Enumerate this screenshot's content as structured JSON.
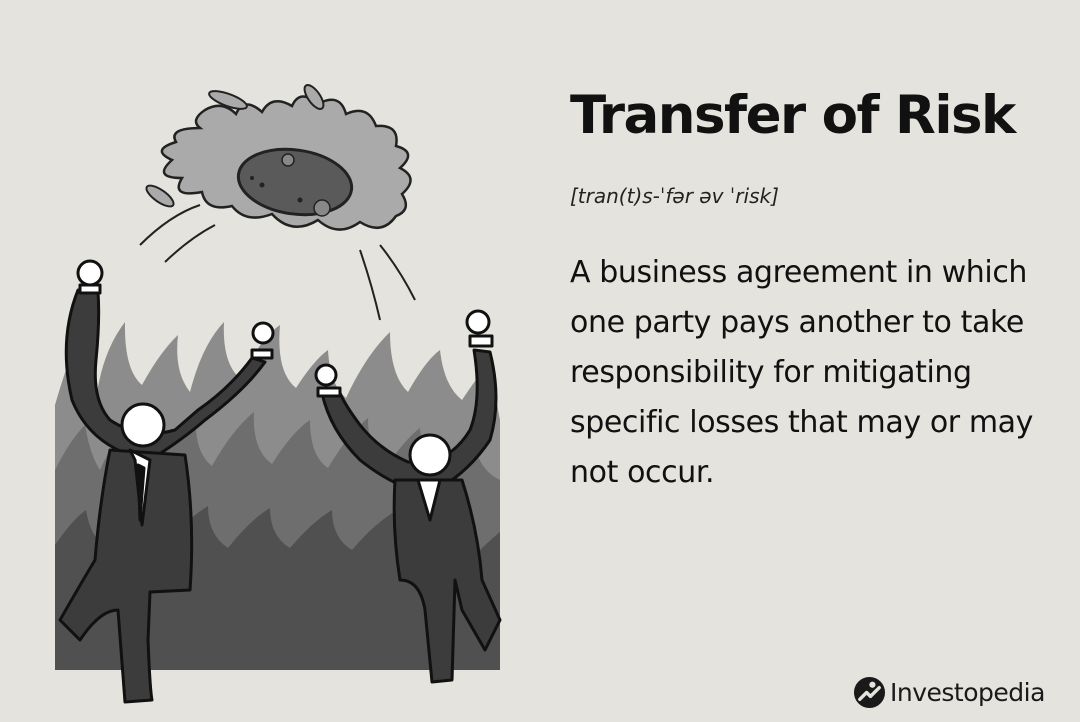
{
  "title": "Transfer of Risk",
  "pronunciation": "[tran(t)s-ˈfər əv ˈrisk]",
  "definition": "A business agreement in which one party pays another to take responsibility for mitigating specific losses that may or may not occur.",
  "brand": {
    "name": "Investopedia",
    "icon": "investopedia-logo-icon"
  },
  "colors": {
    "background": "#e5e3dd",
    "text": "#111111",
    "suit": "#3c3c3c",
    "fire_light": "#8c8c8c",
    "fire_mid": "#6e6e6e",
    "fire_dark": "#505050"
  }
}
